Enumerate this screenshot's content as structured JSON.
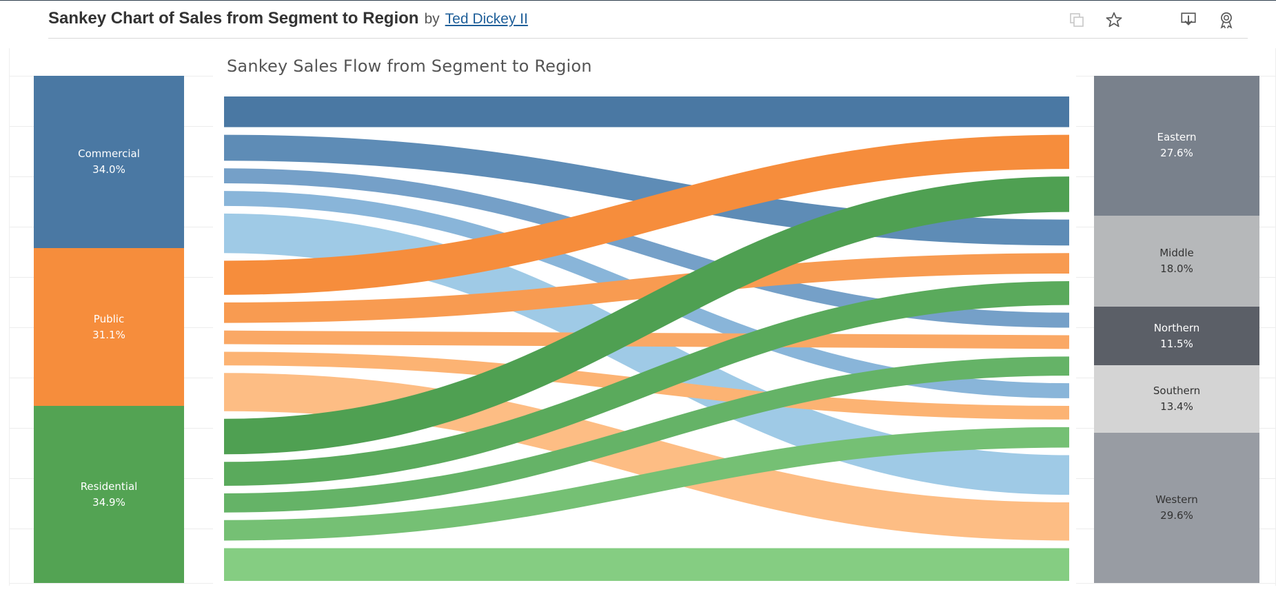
{
  "header": {
    "title": "Sankey Chart of Sales from Segment to Region",
    "by": "by",
    "author": "Ted Dickey II",
    "icons": [
      "copy-icon",
      "star-icon",
      "download-icon",
      "badge-icon"
    ]
  },
  "chart_data": {
    "type": "sankey",
    "title": "Sankey Sales Flow from Segment to Region",
    "sources": [
      {
        "name": "Commercial",
        "share": "34.0%",
        "value": 34.0,
        "color": "#4a78a3"
      },
      {
        "name": "Public",
        "share": "31.1%",
        "value": 31.1,
        "color": "#f68d3c"
      },
      {
        "name": "Residential",
        "share": "34.9%",
        "value": 34.9,
        "color": "#53a353"
      }
    ],
    "targets": [
      {
        "name": "Eastern",
        "share": "27.6%",
        "value": 27.6,
        "color": "#79818c",
        "text_color": "#ffffff"
      },
      {
        "name": "Middle",
        "share": "18.0%",
        "value": 18.0,
        "color": "#b6b8ba",
        "text_color": "#333333"
      },
      {
        "name": "Northern",
        "share": "11.5%",
        "value": 11.5,
        "color": "#5b5f67",
        "text_color": "#ffffff"
      },
      {
        "name": "Southern",
        "share": "13.4%",
        "value": 13.4,
        "color": "#d4d4d4",
        "text_color": "#333333"
      },
      {
        "name": "Western",
        "share": "29.6%",
        "value": 29.6,
        "color": "#989ca3",
        "text_color": "#333333"
      }
    ],
    "flows": [
      {
        "source": "Commercial",
        "target": "Eastern",
        "value": 4.5,
        "color": "#4a78a3"
      },
      {
        "source": "Commercial",
        "target": "Middle",
        "value": 3.8,
        "color": "#5e8cb6"
      },
      {
        "source": "Commercial",
        "target": "Northern",
        "value": 2.2,
        "color": "#75a0c8"
      },
      {
        "source": "Commercial",
        "target": "Southern",
        "value": 2.2,
        "color": "#89b5d9"
      },
      {
        "source": "Commercial",
        "target": "Western",
        "value": 5.8,
        "color": "#9fcae6"
      },
      {
        "source": "Public",
        "target": "Eastern",
        "value": 5.0,
        "color": "#f68d3c"
      },
      {
        "source": "Public",
        "target": "Middle",
        "value": 3.0,
        "color": "#f89b51"
      },
      {
        "source": "Public",
        "target": "Northern",
        "value": 2.0,
        "color": "#faa865"
      },
      {
        "source": "Public",
        "target": "Southern",
        "value": 2.0,
        "color": "#fcb373"
      },
      {
        "source": "Public",
        "target": "Western",
        "value": 5.6,
        "color": "#fdbd84"
      },
      {
        "source": "Residential",
        "target": "Eastern",
        "value": 5.2,
        "color": "#4fa052"
      },
      {
        "source": "Residential",
        "target": "Middle",
        "value": 3.5,
        "color": "#5aaa5c"
      },
      {
        "source": "Residential",
        "target": "Northern",
        "value": 2.8,
        "color": "#65b367"
      },
      {
        "source": "Residential",
        "target": "Southern",
        "value": 3.0,
        "color": "#75c074"
      },
      {
        "source": "Residential",
        "target": "Western",
        "value": 4.8,
        "color": "#85cd82"
      }
    ]
  }
}
